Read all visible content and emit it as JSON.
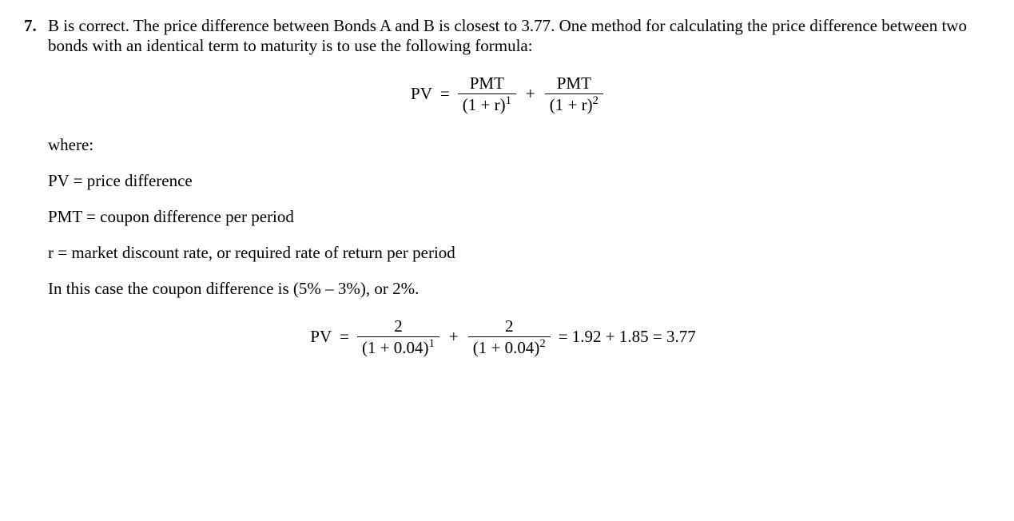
{
  "question": {
    "number": "7.",
    "text": "B is correct. The price difference between Bonds A and B is closest to 3.77. One method for calculating the price difference between two bonds with an identical term to maturity is to use the following formula:"
  },
  "formula1": {
    "lhs": "PV",
    "eq": "=",
    "term1": {
      "num": "PMT",
      "den_base": "(1 + r)",
      "den_exp": "1"
    },
    "plus": "+",
    "term2": {
      "num": "PMT",
      "den_base": "(1 + r)",
      "den_exp": "2"
    }
  },
  "where": {
    "heading": "where:",
    "pv": "PV = price difference",
    "pmt": "PMT = coupon difference per period",
    "r": "r = market discount rate, or required rate of return per period",
    "note": "In this case the coupon difference is (5% – 3%), or 2%."
  },
  "formula2": {
    "lhs": "PV",
    "eq": "=",
    "term1": {
      "num": "2",
      "den_base": "(1 + 0.04)",
      "den_exp": "1"
    },
    "plus": "+",
    "term2": {
      "num": "2",
      "den_base": "(1 + 0.04)",
      "den_exp": "2"
    },
    "result": "= 1.92 + 1.85 = 3.77"
  },
  "style": {
    "font_family": "Times New Roman",
    "font_size_pt": 16,
    "text_color": "#000000",
    "background_color": "#ffffff"
  }
}
